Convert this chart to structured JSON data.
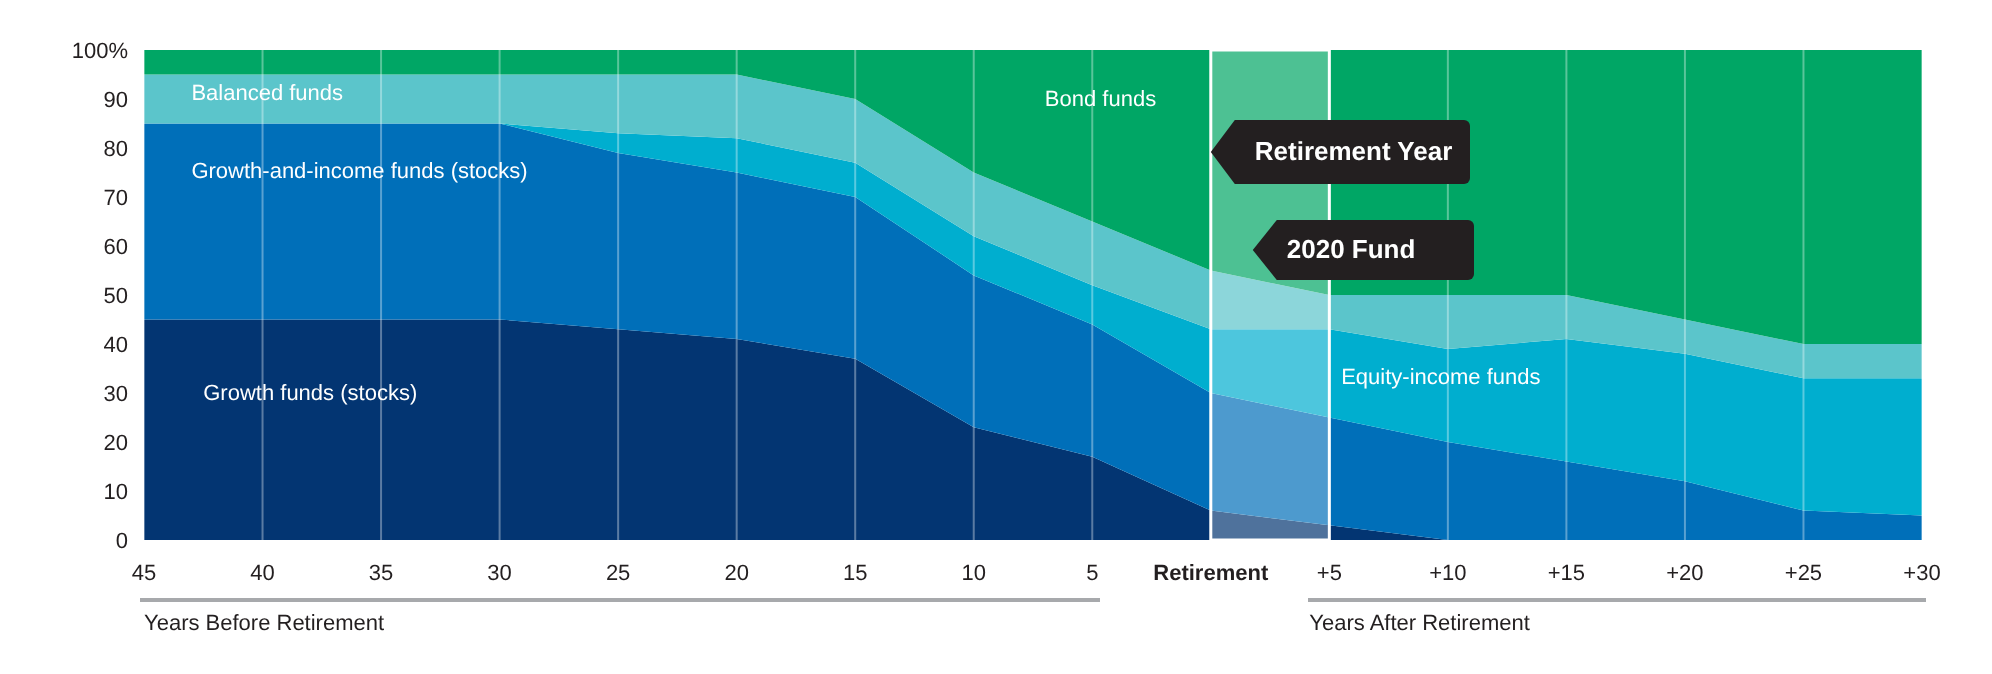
{
  "chart_data": {
    "type": "area",
    "stacked": true,
    "categories": [
      "45",
      "40",
      "35",
      "30",
      "25",
      "20",
      "15",
      "10",
      "5",
      "Retirement",
      "+5",
      "+10",
      "+15",
      "+20",
      "+25",
      "+30"
    ],
    "series": [
      {
        "name": "Growth funds (stocks)",
        "color": "#033572",
        "values": [
          45,
          45,
          45,
          45,
          43,
          41,
          37,
          23,
          17,
          6,
          3,
          0,
          0,
          0,
          0,
          0
        ]
      },
      {
        "name": "Growth-and-income funds (stocks)",
        "color": "#006fb9",
        "values": [
          40,
          40,
          40,
          40,
          36,
          34,
          33,
          31,
          27,
          24,
          22,
          20,
          16,
          12,
          6,
          5
        ]
      },
      {
        "name": "Equity-income funds",
        "color": "#00aecf",
        "values": [
          0,
          0,
          0,
          0,
          4,
          7,
          7,
          8,
          8,
          13,
          18,
          19,
          25,
          26,
          27,
          28
        ]
      },
      {
        "name": "Balanced funds",
        "color": "#5bc5cb",
        "values": [
          10,
          10,
          10,
          10,
          12,
          13,
          13,
          13,
          13,
          12,
          7,
          11,
          9,
          7,
          7,
          7
        ]
      },
      {
        "name": "Bond funds",
        "color": "#00a665",
        "values": [
          5,
          5,
          5,
          5,
          5,
          5,
          10,
          25,
          35,
          45,
          50,
          50,
          50,
          55,
          60,
          60
        ]
      }
    ],
    "ylim": [
      0,
      100
    ],
    "yticks": [
      0,
      10,
      20,
      30,
      40,
      50,
      60,
      70,
      80,
      90,
      {
        "value": 100,
        "label": "100%"
      }
    ],
    "grid": "x",
    "bands": [
      {
        "axis": "x",
        "from": "Retirement",
        "to": "+5",
        "color": "#ffffff"
      }
    ],
    "annotations": [
      "Retirement Year",
      "2020 Fund",
      "Years Before Retirement",
      "Years After Retirement"
    ]
  }
}
